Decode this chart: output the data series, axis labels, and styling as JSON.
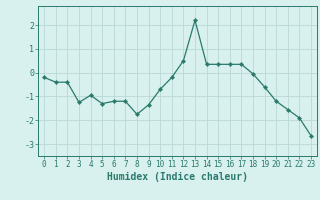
{
  "x": [
    0,
    1,
    2,
    3,
    4,
    5,
    6,
    7,
    8,
    9,
    10,
    11,
    12,
    13,
    14,
    15,
    16,
    17,
    18,
    19,
    20,
    21,
    22,
    23
  ],
  "y": [
    -0.2,
    -0.4,
    -0.4,
    -1.25,
    -0.95,
    -1.3,
    -1.2,
    -1.2,
    -1.75,
    -1.35,
    -0.7,
    -0.2,
    0.5,
    2.2,
    0.35,
    0.35,
    0.35,
    0.35,
    -0.05,
    -0.6,
    -1.2,
    -1.55,
    -1.9,
    -2.65
  ],
  "line_color": "#2a7a6c",
  "marker": "D",
  "marker_size": 2.2,
  "bg_color": "#d8f0ee",
  "grid_color": "#b8d8d4",
  "xlabel": "Humidex (Indice chaleur)",
  "ylim": [
    -3.5,
    2.8
  ],
  "xlim": [
    -0.5,
    23.5
  ],
  "yticks": [
    -3,
    -2,
    -1,
    0,
    1,
    2
  ],
  "xticks": [
    0,
    1,
    2,
    3,
    4,
    5,
    6,
    7,
    8,
    9,
    10,
    11,
    12,
    13,
    14,
    15,
    16,
    17,
    18,
    19,
    20,
    21,
    22,
    23
  ],
  "tick_color": "#2a7a6c",
  "label_color": "#2a7a6c",
  "spine_color": "#2a7a6c",
  "tick_fontsize": 5.5,
  "xlabel_fontsize": 7.0
}
